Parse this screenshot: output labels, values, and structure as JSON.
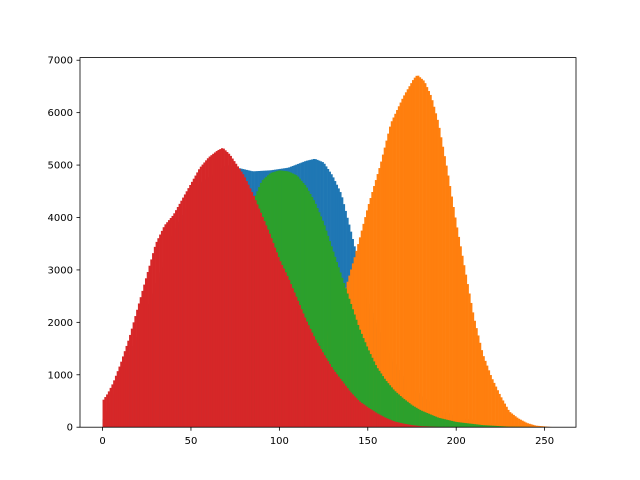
{
  "chart_data": {
    "type": "bar",
    "title": "",
    "xlabel": "",
    "ylabel": "",
    "xlim": [
      -12.75,
      267.75
    ],
    "ylim": [
      0,
      7050
    ],
    "x_ticks": [
      0,
      50,
      100,
      150,
      200,
      250
    ],
    "y_ticks": [
      0,
      1000,
      2000,
      3000,
      4000,
      5000,
      6000,
      7000
    ],
    "grid": false,
    "legend": "none",
    "bin_width": 1,
    "x_domain": [
      0,
      255
    ],
    "series": [
      {
        "color": "#1f77b4",
        "profile": [
          [
            0,
            120
          ],
          [
            10,
            900
          ],
          [
            25,
            2200
          ],
          [
            40,
            3700
          ],
          [
            55,
            4650
          ],
          [
            70,
            5000
          ],
          [
            85,
            4880
          ],
          [
            95,
            4900
          ],
          [
            105,
            4950
          ],
          [
            115,
            5080
          ],
          [
            120,
            5120
          ],
          [
            125,
            5050
          ],
          [
            130,
            4800
          ],
          [
            135,
            4450
          ],
          [
            140,
            3800
          ],
          [
            145,
            3100
          ],
          [
            150,
            2400
          ],
          [
            160,
            1500
          ],
          [
            170,
            950
          ],
          [
            180,
            600
          ],
          [
            190,
            350
          ],
          [
            200,
            200
          ],
          [
            215,
            100
          ],
          [
            230,
            40
          ],
          [
            245,
            10
          ],
          [
            255,
            0
          ]
        ]
      },
      {
        "color": "#ff7f0e",
        "profile": [
          [
            0,
            0
          ],
          [
            100,
            0
          ],
          [
            110,
            500
          ],
          [
            120,
            1300
          ],
          [
            130,
            2000
          ],
          [
            137,
            2600
          ],
          [
            143,
            3300
          ],
          [
            150,
            4200
          ],
          [
            157,
            5000
          ],
          [
            163,
            5800
          ],
          [
            170,
            6300
          ],
          [
            176,
            6650
          ],
          [
            178,
            6720
          ],
          [
            182,
            6600
          ],
          [
            186,
            6300
          ],
          [
            190,
            5800
          ],
          [
            195,
            4900
          ],
          [
            200,
            3900
          ],
          [
            205,
            3000
          ],
          [
            210,
            2100
          ],
          [
            215,
            1400
          ],
          [
            220,
            950
          ],
          [
            225,
            600
          ],
          [
            230,
            300
          ],
          [
            235,
            170
          ],
          [
            240,
            80
          ],
          [
            245,
            30
          ],
          [
            255,
            0
          ]
        ]
      },
      {
        "color": "#2ca02c",
        "profile": [
          [
            0,
            0
          ],
          [
            80,
            0
          ],
          [
            85,
            4300
          ],
          [
            90,
            4700
          ],
          [
            95,
            4850
          ],
          [
            100,
            4900
          ],
          [
            105,
            4880
          ],
          [
            110,
            4800
          ],
          [
            115,
            4600
          ],
          [
            120,
            4300
          ],
          [
            125,
            3900
          ],
          [
            130,
            3400
          ],
          [
            135,
            2900
          ],
          [
            140,
            2400
          ],
          [
            145,
            1900
          ],
          [
            150,
            1500
          ],
          [
            155,
            1150
          ],
          [
            160,
            900
          ],
          [
            165,
            700
          ],
          [
            170,
            550
          ],
          [
            175,
            420
          ],
          [
            180,
            320
          ],
          [
            190,
            180
          ],
          [
            200,
            100
          ],
          [
            215,
            40
          ],
          [
            230,
            10
          ],
          [
            255,
            0
          ]
        ]
      },
      {
        "color": "#d62728",
        "profile": [
          [
            0,
            500
          ],
          [
            3,
            650
          ],
          [
            6,
            850
          ],
          [
            10,
            1200
          ],
          [
            15,
            1700
          ],
          [
            20,
            2300
          ],
          [
            25,
            2900
          ],
          [
            30,
            3500
          ],
          [
            35,
            3850
          ],
          [
            40,
            4050
          ],
          [
            45,
            4350
          ],
          [
            50,
            4650
          ],
          [
            55,
            4950
          ],
          [
            60,
            5150
          ],
          [
            65,
            5280
          ],
          [
            68,
            5330
          ],
          [
            72,
            5200
          ],
          [
            76,
            5000
          ],
          [
            80,
            4800
          ],
          [
            85,
            4450
          ],
          [
            90,
            4050
          ],
          [
            95,
            3650
          ],
          [
            100,
            3200
          ],
          [
            105,
            2850
          ],
          [
            110,
            2450
          ],
          [
            115,
            2050
          ],
          [
            120,
            1700
          ],
          [
            125,
            1400
          ],
          [
            130,
            1120
          ],
          [
            135,
            900
          ],
          [
            140,
            680
          ],
          [
            145,
            500
          ],
          [
            150,
            380
          ],
          [
            155,
            270
          ],
          [
            160,
            180
          ],
          [
            165,
            110
          ],
          [
            170,
            70
          ],
          [
            175,
            40
          ],
          [
            180,
            20
          ],
          [
            190,
            5
          ],
          [
            255,
            0
          ]
        ]
      }
    ]
  }
}
